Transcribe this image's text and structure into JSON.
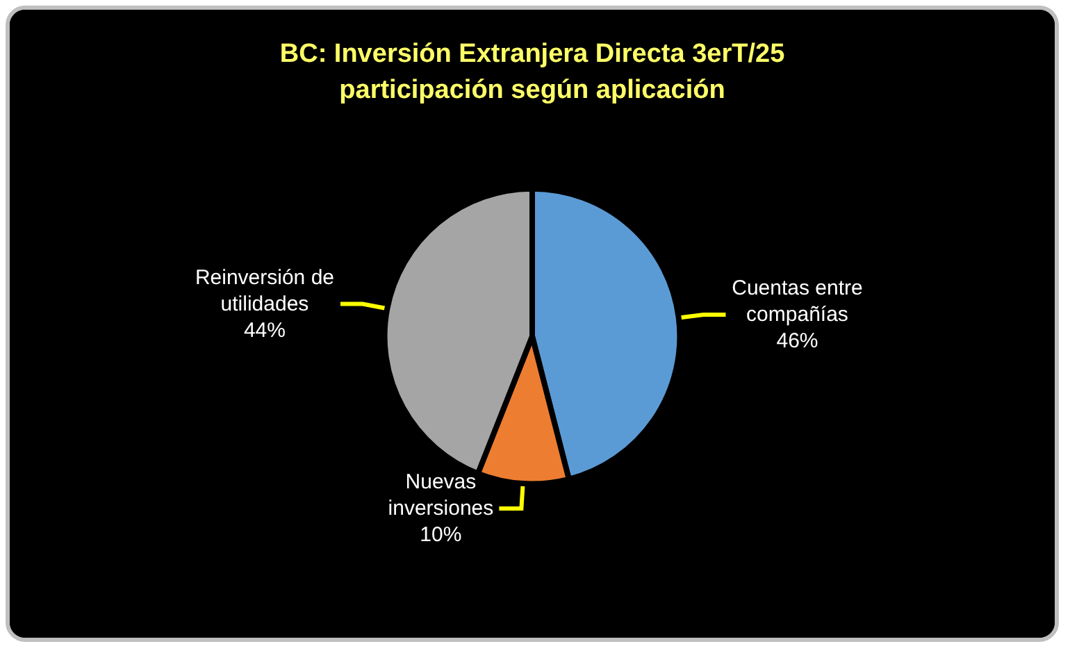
{
  "chart_data": {
    "type": "pie",
    "title": "BC: Inversión Extranjera Directa 3erT/25\nparticipación según aplicación",
    "categories": [
      "Cuentas entre compañías",
      "Nuevas inversiones",
      "Reinversión de utilidades"
    ],
    "values": [
      46,
      10,
      44
    ],
    "colors": [
      "#5b9bd5",
      "#ed7d31",
      "#a5a5a5"
    ],
    "value_labels": [
      "46%",
      "10%",
      "44%"
    ]
  }
}
